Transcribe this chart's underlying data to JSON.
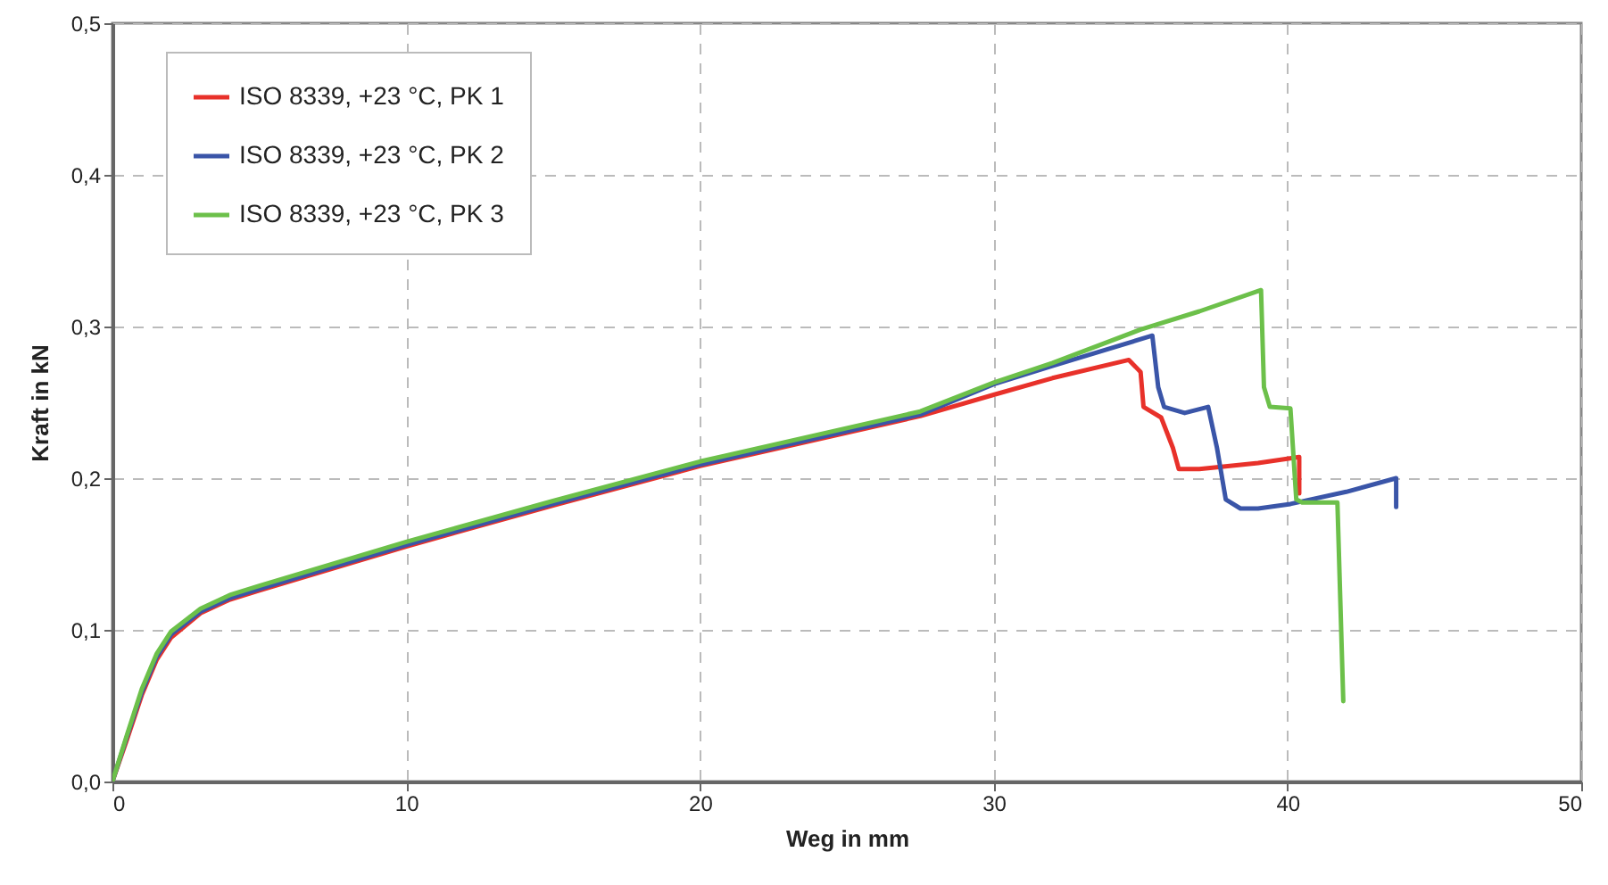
{
  "chart_data": {
    "type": "line",
    "xlabel": "Weg in mm",
    "ylabel": "Kraft in kN",
    "xlim": [
      0,
      50
    ],
    "ylim": [
      0,
      0.5
    ],
    "xticks": [
      0,
      10,
      20,
      30,
      40,
      50
    ],
    "yticks": [
      {
        "value": 0,
        "label": "0,0"
      },
      {
        "value": 0.1,
        "label": "0,1"
      },
      {
        "value": 0.2,
        "label": "0,2"
      },
      {
        "value": 0.3,
        "label": "0,3"
      },
      {
        "value": 0.4,
        "label": "0,4"
      },
      {
        "value": 0.5,
        "label": "0,5"
      }
    ],
    "grid": true,
    "legend": "top left",
    "line_style": "solid",
    "marker": "none",
    "series": [
      {
        "name": "ISO 8339, +23 °C, PK 1",
        "color": "#e8312a",
        "x": [
          0,
          0.5,
          1,
          1.5,
          2,
          3,
          4,
          5,
          10,
          15,
          20,
          25,
          27.5,
          30,
          32,
          34.6,
          35,
          35.1,
          35.7,
          36.1,
          36.3,
          37,
          39,
          40.4,
          40.4
        ],
        "values": [
          0,
          0.028,
          0.057,
          0.08,
          0.095,
          0.111,
          0.12,
          0.126,
          0.155,
          0.182,
          0.208,
          0.23,
          0.241,
          0.255,
          0.266,
          0.278,
          0.27,
          0.247,
          0.24,
          0.22,
          0.206,
          0.206,
          0.21,
          0.214,
          0.19
        ]
      },
      {
        "name": "ISO 8339, +23 °C, PK 2",
        "color": "#3a55a8",
        "x": [
          0,
          0.5,
          1,
          1.5,
          2,
          3,
          4,
          5,
          10,
          15,
          20,
          25,
          27.5,
          30,
          32,
          35.4,
          35.6,
          35.8,
          36.5,
          37.3,
          37.6,
          37.9,
          38.4,
          39,
          40.1,
          42,
          43.7,
          43.7
        ],
        "values": [
          0,
          0.03,
          0.059,
          0.082,
          0.097,
          0.112,
          0.121,
          0.127,
          0.156,
          0.183,
          0.209,
          0.231,
          0.242,
          0.262,
          0.274,
          0.294,
          0.26,
          0.247,
          0.243,
          0.247,
          0.22,
          0.186,
          0.18,
          0.18,
          0.183,
          0.191,
          0.2,
          0.181
        ]
      },
      {
        "name": "ISO 8339, +23 °C, PK 3",
        "color": "#6cc04a",
        "x": [
          0,
          0.5,
          1,
          1.5,
          2,
          3,
          4,
          5,
          10,
          15,
          20,
          25,
          27.5,
          30,
          32,
          35,
          37,
          39.1,
          39.2,
          39.4,
          40.1,
          40.3,
          40.5,
          41.7,
          41.9
        ],
        "values": [
          0,
          0.031,
          0.061,
          0.084,
          0.099,
          0.114,
          0.123,
          0.129,
          0.158,
          0.185,
          0.211,
          0.233,
          0.244,
          0.263,
          0.276,
          0.298,
          0.31,
          0.324,
          0.26,
          0.247,
          0.246,
          0.186,
          0.184,
          0.184,
          0.053
        ]
      }
    ]
  }
}
